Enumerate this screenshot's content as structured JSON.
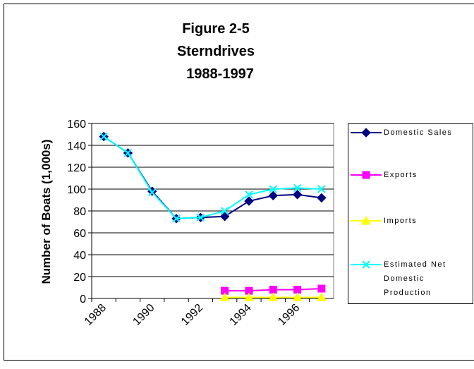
{
  "chart_data": {
    "type": "line",
    "title": [
      "Figure 2-5",
      "Sterndrives",
      "1988-1997"
    ],
    "y_label": "Number of Boats (1,000s)",
    "categories": [
      "1988",
      null,
      "1990",
      null,
      "1992",
      null,
      "1994",
      null,
      "1996",
      null
    ],
    "ylim": [
      0,
      160
    ],
    "yticks": [
      0,
      20,
      40,
      60,
      80,
      100,
      120,
      140,
      160
    ],
    "grid": true,
    "series": [
      {
        "name": "Domestic Sales",
        "color": "#000080",
        "marker": "diamond",
        "values": [
          148,
          133,
          98,
          73,
          74,
          75,
          89,
          94,
          95,
          92
        ]
      },
      {
        "name": "Exports",
        "color": "#ff00ff",
        "marker": "square",
        "values": [
          null,
          null,
          null,
          null,
          null,
          7,
          7,
          8,
          8,
          9
        ]
      },
      {
        "name": "Imports",
        "color": "#ffff00",
        "marker": "triangle",
        "values": [
          null,
          null,
          null,
          null,
          null,
          1,
          1,
          1,
          1,
          1
        ]
      },
      {
        "name": "Estimated Net Domestic Production",
        "color": "#00ffff",
        "marker": "x",
        "values": [
          148,
          133,
          97,
          73,
          74,
          80,
          95,
          100,
          101,
          100
        ]
      }
    ]
  }
}
